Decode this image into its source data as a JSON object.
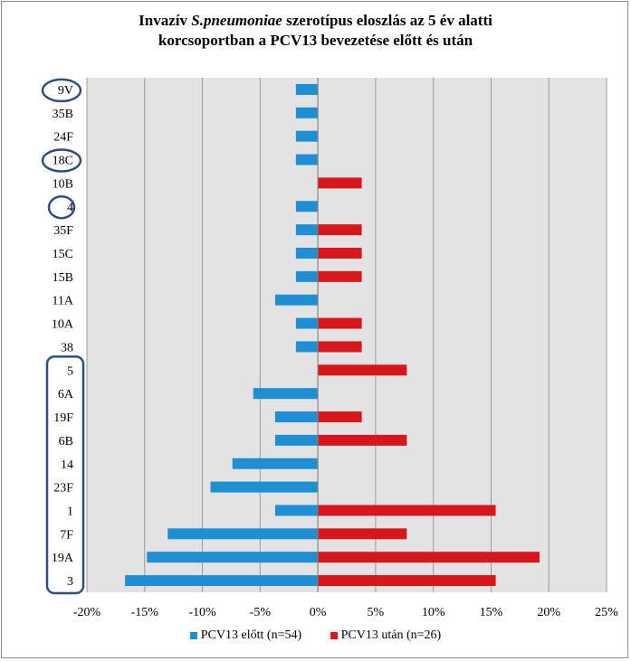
{
  "title": {
    "part1": "Invazív ",
    "italic": "S.pneumoniae",
    "part2": " szerotípus  eloszlás  az 5 év alatti",
    "line2": "korcsoportban a PCV13 bevezetése előtt és után"
  },
  "colors": {
    "before": "#1e8fd2",
    "after": "#d8161c",
    "highlight": "#2f4e80",
    "plot_bg": "#e3e3e3",
    "grid": "#9a9a9a"
  },
  "chart_data": {
    "type": "bar",
    "orientation": "horizontal",
    "title": "Invazív S.pneumoniae szerotípus  eloszlás  az 5 év alatti korcsoportban a PCV13 bevezetése előtt és után",
    "xlim": [
      -20,
      25
    ],
    "x_ticks": [
      "-20%",
      "-15%",
      "-10%",
      "-5%",
      "0%",
      "5%",
      "10%",
      "15%",
      "20%",
      "25%"
    ],
    "categories": [
      "9V",
      "35B",
      "24F",
      "18C",
      "10B",
      "4",
      "35F",
      "15C",
      "15B",
      "11A",
      "10A",
      "38",
      "5",
      "6A",
      "19F",
      "6B",
      "14",
      "23F",
      "1",
      "7F",
      "19A",
      "3"
    ],
    "series": [
      {
        "name": "PCV13 előtt (n=54)",
        "values": [
          -1.9,
          -1.9,
          -1.9,
          -1.9,
          0,
          -1.9,
          -1.9,
          -1.9,
          -1.9,
          -3.7,
          -1.9,
          -1.9,
          0,
          -5.6,
          -3.7,
          -3.7,
          -7.4,
          -9.3,
          -3.7,
          -13.0,
          -14.8,
          -16.7
        ]
      },
      {
        "name": "PCV13 után (n=26)",
        "values": [
          0,
          0,
          0,
          0,
          3.8,
          0,
          3.8,
          3.8,
          3.8,
          0,
          3.8,
          3.8,
          7.7,
          0,
          3.8,
          7.7,
          0,
          0,
          15.4,
          7.7,
          19.2,
          15.4
        ]
      }
    ],
    "circled_categories": [
      "9V",
      "18C",
      "4"
    ],
    "boxed_group": [
      "5",
      "6A",
      "19F",
      "6B",
      "14",
      "23F",
      "1",
      "7F",
      "19A",
      "3"
    ],
    "legend_position": "bottom"
  }
}
